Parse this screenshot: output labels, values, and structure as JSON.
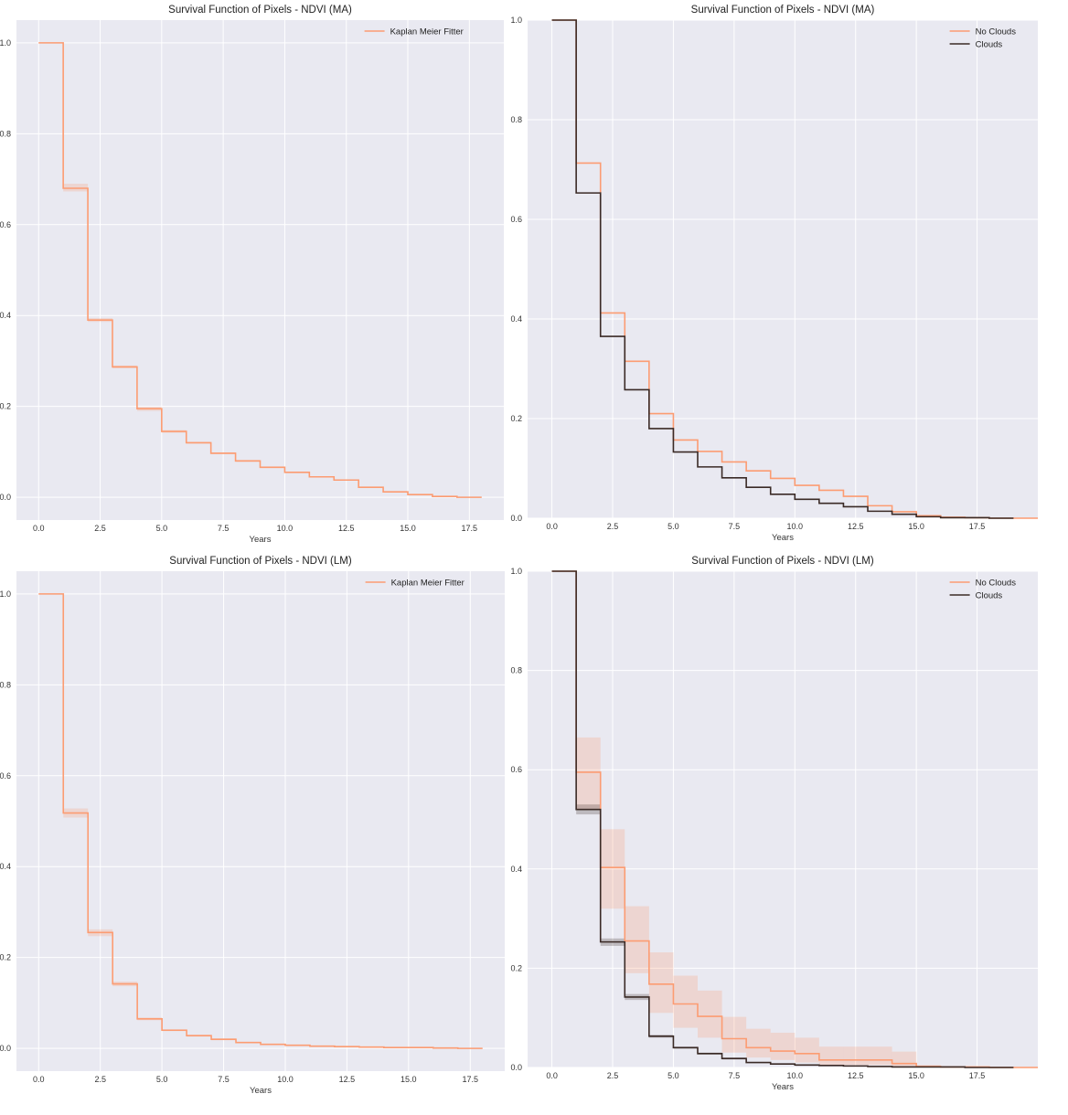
{
  "colors": {
    "orange": "#fc9c72",
    "dark": "#3a2a26",
    "panel_bg": "#e9e9f1",
    "grid": "#ffffff"
  },
  "chart_data": [
    {
      "type": "line",
      "title": "Survival Function of Pixels - NDVI (MA)",
      "xlabel": "Years",
      "ylabel": "",
      "xlim": [
        -0.9,
        18.9
      ],
      "ylim": [
        -0.05,
        1.05
      ],
      "xticks": [
        0.0,
        2.5,
        5.0,
        7.5,
        10.0,
        12.5,
        15.0,
        17.5
      ],
      "xtick_labels": [
        "0.0",
        "2.5",
        "5.0",
        "7.5",
        "10.0",
        "12.5",
        "15.0",
        "17.5"
      ],
      "yticks": [
        0.0,
        0.2,
        0.4,
        0.6,
        0.8,
        1.0
      ],
      "ytick_labels": [
        "0.0",
        "0.2",
        "0.4",
        "0.6",
        "0.8",
        "1.0"
      ],
      "grid": true,
      "legend": "top-right",
      "series": [
        {
          "name": "Kaplan Meier Fitter",
          "color": "#fc9c72",
          "x": [
            0,
            1,
            2,
            3,
            4,
            5,
            6,
            7,
            8,
            9,
            10,
            11,
            12,
            13,
            14,
            15,
            16,
            17
          ],
          "y": [
            1.0,
            0.68,
            0.39,
            0.287,
            0.195,
            0.145,
            0.12,
            0.097,
            0.08,
            0.066,
            0.055,
            0.045,
            0.038,
            0.022,
            0.012,
            0.006,
            0.002,
            0.0
          ],
          "ci_lower": [
            1.0,
            0.673,
            0.386,
            0.284,
            0.19,
            0.142,
            0.118,
            0.095,
            0.078,
            0.065,
            0.054,
            0.044,
            0.037,
            0.021,
            0.011,
            0.005,
            0.001,
            0.0
          ],
          "ci_upper": [
            1.0,
            0.69,
            0.394,
            0.29,
            0.199,
            0.148,
            0.122,
            0.099,
            0.082,
            0.068,
            0.056,
            0.046,
            0.039,
            0.023,
            0.013,
            0.007,
            0.003,
            0.001
          ]
        }
      ]
    },
    {
      "type": "line",
      "title": "Survival Function of Pixels - NDVI (MA)",
      "xlabel": "Years",
      "ylabel": "",
      "xlim": [
        -1.0,
        20.0
      ],
      "ylim": [
        0.0,
        1.0
      ],
      "xticks": [
        0.0,
        2.5,
        5.0,
        7.5,
        10.0,
        12.5,
        15.0,
        17.5
      ],
      "xtick_labels": [
        "0.0",
        "2.5",
        "5.0",
        "7.5",
        "10.0",
        "12.5",
        "15.0",
        "17.5"
      ],
      "yticks": [
        0.0,
        0.2,
        0.4,
        0.6,
        0.8,
        1.0
      ],
      "ytick_labels": [
        "0.0",
        "0.2",
        "0.4",
        "0.6",
        "0.8",
        "1.0"
      ],
      "grid": true,
      "legend": "top-right",
      "series": [
        {
          "name": "No Clouds",
          "color": "#fc9c72",
          "x": [
            0,
            1,
            2,
            3,
            4,
            5,
            6,
            7,
            8,
            9,
            10,
            11,
            12,
            13,
            14,
            15,
            16,
            17,
            18,
            19
          ],
          "y": [
            1.0,
            0.713,
            0.412,
            0.315,
            0.21,
            0.157,
            0.134,
            0.113,
            0.095,
            0.08,
            0.066,
            0.056,
            0.044,
            0.025,
            0.013,
            0.005,
            0.002,
            0.001,
            0.0,
            0.0
          ]
        },
        {
          "name": "Clouds",
          "color": "#3a2a26",
          "x": [
            0,
            1,
            2,
            3,
            4,
            5,
            6,
            7,
            8,
            9,
            10,
            11,
            12,
            13,
            14,
            15,
            16,
            17,
            18
          ],
          "y": [
            1.0,
            0.653,
            0.365,
            0.258,
            0.18,
            0.133,
            0.103,
            0.081,
            0.062,
            0.048,
            0.038,
            0.03,
            0.023,
            0.014,
            0.008,
            0.003,
            0.001,
            0.001,
            0.0
          ]
        }
      ]
    },
    {
      "type": "line",
      "title": "Survival Function of Pixels - NDVI (LM)",
      "xlabel": "Years",
      "ylabel": "",
      "xlim": [
        -0.9,
        18.9
      ],
      "ylim": [
        -0.05,
        1.05
      ],
      "xticks": [
        0.0,
        2.5,
        5.0,
        7.5,
        10.0,
        12.5,
        15.0,
        17.5
      ],
      "xtick_labels": [
        "0.0",
        "2.5",
        "5.0",
        "7.5",
        "10.0",
        "12.5",
        "15.0",
        "17.5"
      ],
      "yticks": [
        0.0,
        0.2,
        0.4,
        0.6,
        0.8,
        1.0
      ],
      "ytick_labels": [
        "0.0",
        "0.2",
        "0.4",
        "0.6",
        "0.8",
        "1.0"
      ],
      "grid": true,
      "legend": "top-right",
      "series": [
        {
          "name": "Kaplan Meier Fitter",
          "color": "#fc9c72",
          "x": [
            0,
            1,
            2,
            3,
            4,
            5,
            6,
            7,
            8,
            9,
            10,
            11,
            12,
            13,
            14,
            15,
            16,
            17
          ],
          "y": [
            1.0,
            0.518,
            0.255,
            0.142,
            0.065,
            0.04,
            0.028,
            0.02,
            0.013,
            0.009,
            0.007,
            0.005,
            0.004,
            0.003,
            0.002,
            0.002,
            0.001,
            0.0
          ],
          "ci_lower": [
            1.0,
            0.508,
            0.247,
            0.137,
            0.062,
            0.038,
            0.026,
            0.018,
            0.012,
            0.008,
            0.006,
            0.004,
            0.003,
            0.002,
            0.001,
            0.001,
            0.0,
            0.0
          ],
          "ci_upper": [
            1.0,
            0.528,
            0.262,
            0.147,
            0.068,
            0.042,
            0.03,
            0.022,
            0.014,
            0.01,
            0.008,
            0.006,
            0.005,
            0.004,
            0.003,
            0.003,
            0.002,
            0.001
          ]
        }
      ]
    },
    {
      "type": "line",
      "title": "Survival Function of Pixels - NDVI (LM)",
      "xlabel": "Years",
      "ylabel": "",
      "xlim": [
        -1.0,
        20.0
      ],
      "ylim": [
        0.0,
        1.0
      ],
      "xticks": [
        0.0,
        2.5,
        5.0,
        7.5,
        10.0,
        12.5,
        15.0,
        17.5
      ],
      "xtick_labels": [
        "0.0",
        "2.5",
        "5.0",
        "7.5",
        "10.0",
        "12.5",
        "15.0",
        "17.5"
      ],
      "yticks": [
        0.0,
        0.2,
        0.4,
        0.6,
        0.8,
        1.0
      ],
      "ytick_labels": [
        "0.0",
        "0.2",
        "0.4",
        "0.6",
        "0.8",
        "1.0"
      ],
      "grid": true,
      "legend": "top-right",
      "series": [
        {
          "name": "No Clouds",
          "color": "#fc9c72",
          "x": [
            0,
            1,
            2,
            3,
            4,
            5,
            6,
            7,
            8,
            9,
            10,
            11,
            12,
            13,
            14,
            15,
            16,
            17,
            18,
            19
          ],
          "y": [
            1.0,
            0.595,
            0.403,
            0.255,
            0.168,
            0.128,
            0.103,
            0.058,
            0.04,
            0.033,
            0.028,
            0.015,
            0.015,
            0.015,
            0.008,
            0.002,
            0.001,
            0.001,
            0.0,
            0.0
          ],
          "ci_lower": [
            1.0,
            0.52,
            0.32,
            0.19,
            0.11,
            0.08,
            0.06,
            0.03,
            0.02,
            0.015,
            0.01,
            0.005,
            0.005,
            0.005,
            0.002,
            0.0,
            0.0,
            0.0,
            0.0,
            0.0
          ],
          "ci_upper": [
            1.0,
            0.665,
            0.48,
            0.325,
            0.232,
            0.185,
            0.155,
            0.102,
            0.078,
            0.07,
            0.06,
            0.042,
            0.042,
            0.042,
            0.032,
            0.005,
            0.002,
            0.002,
            0.001,
            0.0
          ]
        },
        {
          "name": "Clouds",
          "color": "#3a2a26",
          "x": [
            0,
            1,
            2,
            3,
            4,
            5,
            6,
            7,
            8,
            9,
            10,
            11,
            12,
            13,
            14,
            15,
            16,
            17,
            18
          ],
          "y": [
            1.0,
            0.52,
            0.253,
            0.142,
            0.063,
            0.04,
            0.028,
            0.018,
            0.01,
            0.007,
            0.005,
            0.004,
            0.003,
            0.002,
            0.001,
            0.001,
            0.001,
            0.0,
            0.0
          ],
          "ci_lower": [
            1.0,
            0.51,
            0.245,
            0.136,
            0.06,
            0.038,
            0.026,
            0.016,
            0.009,
            0.006,
            0.004,
            0.003,
            0.002,
            0.001,
            0.0,
            0.0,
            0.0,
            0.0,
            0.0
          ],
          "ci_upper": [
            1.0,
            0.53,
            0.26,
            0.148,
            0.066,
            0.042,
            0.03,
            0.02,
            0.011,
            0.008,
            0.006,
            0.005,
            0.004,
            0.003,
            0.002,
            0.002,
            0.002,
            0.001,
            0.0
          ]
        }
      ]
    }
  ]
}
